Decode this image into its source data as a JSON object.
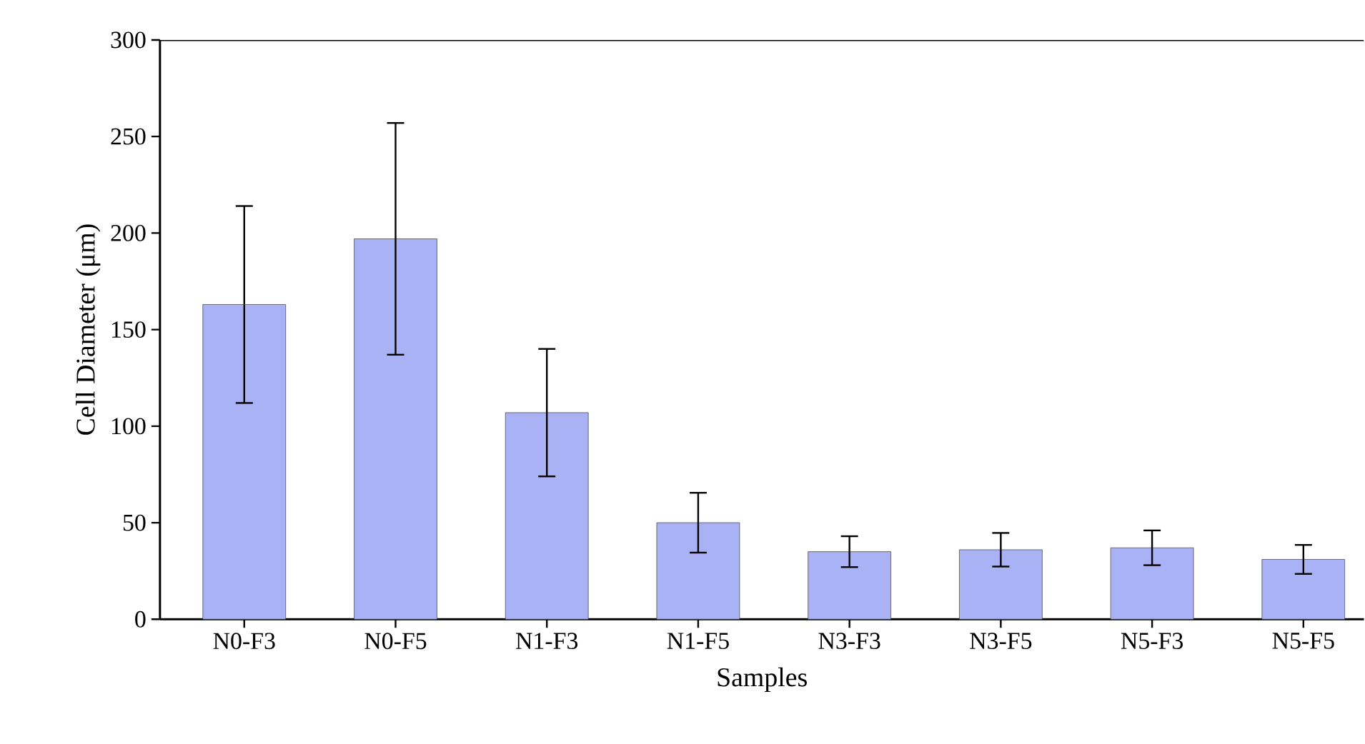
{
  "chart_data": {
    "type": "bar",
    "xlabel": "Samples",
    "ylabel": "Cell Diameter (μm)",
    "categories": [
      "N0-F3",
      "N0-F5",
      "N1-F3",
      "N1-F5",
      "N3-F3",
      "N3-F5",
      "N5-F3",
      "N5-F5"
    ],
    "values": [
      163,
      197,
      107,
      50,
      35,
      36,
      37,
      31
    ],
    "errors": [
      51,
      60,
      33,
      15.5,
      8,
      8.7,
      9,
      7.5
    ],
    "color": "#aab2f6",
    "ylim": [
      0,
      300
    ],
    "yticks": [
      0,
      50,
      100,
      150,
      200,
      250,
      300
    ]
  }
}
